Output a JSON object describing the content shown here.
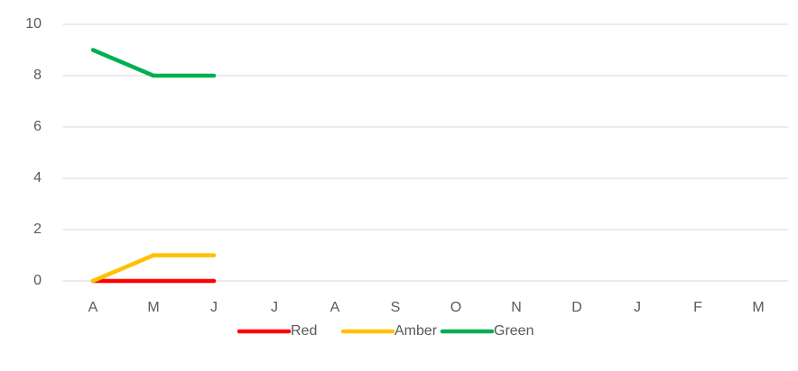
{
  "chart_data": {
    "type": "line",
    "categories": [
      "A",
      "M",
      "J",
      "J",
      "A",
      "S",
      "O",
      "N",
      "D",
      "J",
      "F",
      "M"
    ],
    "series": [
      {
        "name": "Red",
        "color": "#ff0000",
        "values": [
          0,
          0,
          0,
          null,
          null,
          null,
          null,
          null,
          null,
          null,
          null,
          null
        ]
      },
      {
        "name": "Amber",
        "color": "#ffc000",
        "values": [
          0,
          1,
          1,
          null,
          null,
          null,
          null,
          null,
          null,
          null,
          null,
          null
        ]
      },
      {
        "name": "Green",
        "color": "#00b050",
        "values": [
          9,
          8,
          8,
          null,
          null,
          null,
          null,
          null,
          null,
          null,
          null,
          null
        ]
      }
    ],
    "ylim": [
      0,
      10
    ],
    "yticks": [
      0,
      2,
      4,
      6,
      8,
      10
    ],
    "grid": true,
    "legend": "bottom"
  }
}
